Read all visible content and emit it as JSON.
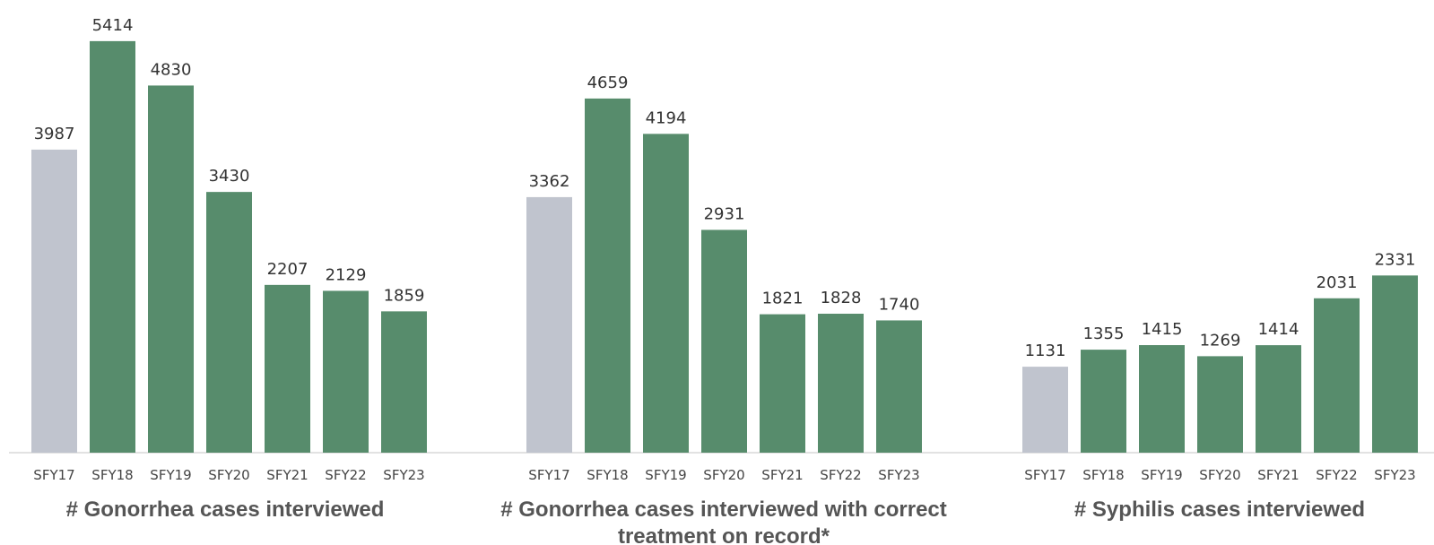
{
  "colors": {
    "baseline_bar": "#c0c4ce",
    "bar": "#578c6c",
    "axis": "#d9d9d9",
    "label": "#333333",
    "title": "#555555"
  },
  "chart_data": [
    {
      "type": "bar",
      "title": "# Gonorrhea cases interviewed",
      "xlabel": "",
      "ylabel": "",
      "categories": [
        "SFY17",
        "SFY18",
        "SFY19",
        "SFY20",
        "SFY21",
        "SFY22",
        "SFY23"
      ],
      "values": [
        3987,
        5414,
        4830,
        3430,
        2207,
        2129,
        1859
      ],
      "highlight_first_bar_gray": true,
      "grid": false
    },
    {
      "type": "bar",
      "title": "# Gonorrhea cases interviewed with correct treatment on record*",
      "xlabel": "",
      "ylabel": "",
      "categories": [
        "SFY17",
        "SFY18",
        "SFY19",
        "SFY20",
        "SFY21",
        "SFY22",
        "SFY23"
      ],
      "values": [
        3362,
        4659,
        4194,
        2931,
        1821,
        1828,
        1740
      ],
      "highlight_first_bar_gray": true,
      "grid": false
    },
    {
      "type": "bar",
      "title": "# Syphilis cases interviewed",
      "xlabel": "",
      "ylabel": "",
      "categories": [
        "SFY17",
        "SFY18",
        "SFY19",
        "SFY20",
        "SFY21",
        "SFY22",
        "SFY23"
      ],
      "values": [
        1131,
        1355,
        1415,
        1269,
        1414,
        2031,
        2331
      ],
      "highlight_first_bar_gray": true,
      "grid": false
    }
  ]
}
